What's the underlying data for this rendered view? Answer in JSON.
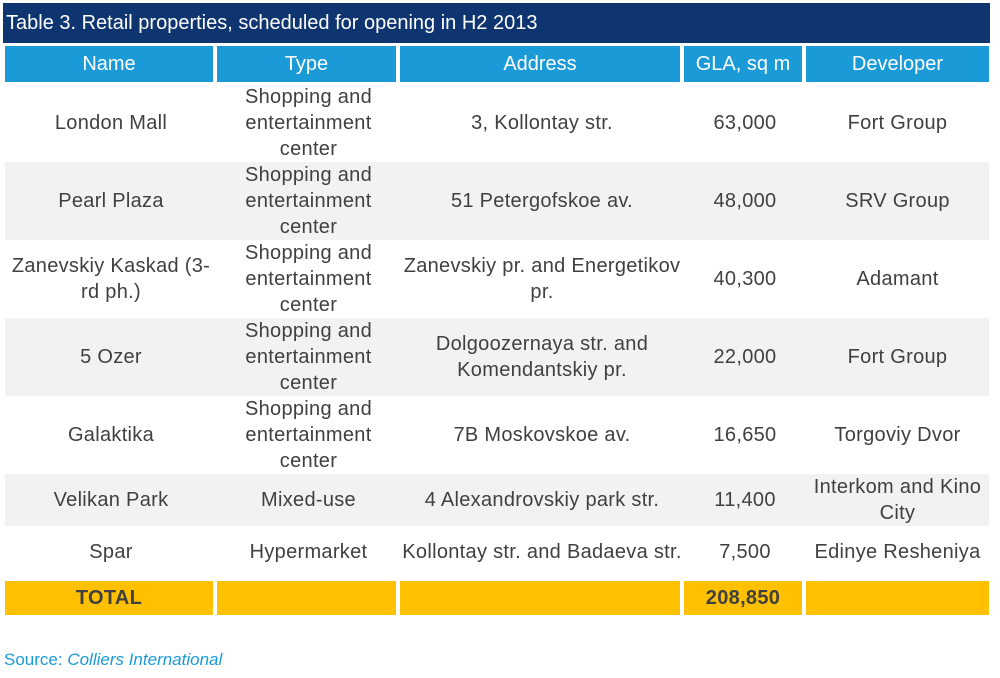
{
  "caption": "Table 3. Retail properties, scheduled for opening in H2 2013",
  "columns": [
    "Name",
    "Type",
    "Address",
    "GLA, sq m",
    "Developer"
  ],
  "rows": [
    {
      "name": "London Mall",
      "type": "Shopping and entertainment center",
      "address": "3, Kollontay str.",
      "gla": "63,000",
      "developer": "Fort Group"
    },
    {
      "name": "Pearl Plaza",
      "type": "Shopping and entertainment center",
      "address": "51 Petergofskoe av.",
      "gla": "48,000",
      "developer": "SRV Group"
    },
    {
      "name": "Zanevskiy Kaskad (3-rd ph.)",
      "type": "Shopping and entertainment center",
      "address": "Zanevskiy pr. and Energetikov pr.",
      "gla": "40,300",
      "developer": "Adamant"
    },
    {
      "name": "5 Ozer",
      "type": "Shopping and entertainment center",
      "address": "Dolgoozernaya str. and Komendantskiy pr.",
      "gla": "22,000",
      "developer": "Fort Group"
    },
    {
      "name": "Galaktika",
      "type": "Shopping and entertainment center",
      "address": "7B Moskovskoe av.",
      "gla": "16,650",
      "developer": "Torgoviy Dvor"
    },
    {
      "name": "Velikan Park",
      "type": "Mixed-use",
      "address": "4 Alexandrovskiy park str.",
      "gla": "11,400",
      "developer": "Interkom and Kino City"
    },
    {
      "name": "Spar",
      "type": "Hypermarket",
      "address": "Kollontay str. and Badaeva str.",
      "gla": "7,500",
      "developer": "Edinye Resheniya"
    }
  ],
  "total": {
    "label": "TOTAL",
    "gla": "208,850"
  },
  "source": {
    "prefix": "Source: ",
    "org": "Colliers International"
  },
  "colors": {
    "caption_bg": "#0f3570",
    "header_bg": "#1a9bd7",
    "total_bg": "#ffc000",
    "row_alt_bg": "#f2f2f2",
    "text": "#404040"
  }
}
